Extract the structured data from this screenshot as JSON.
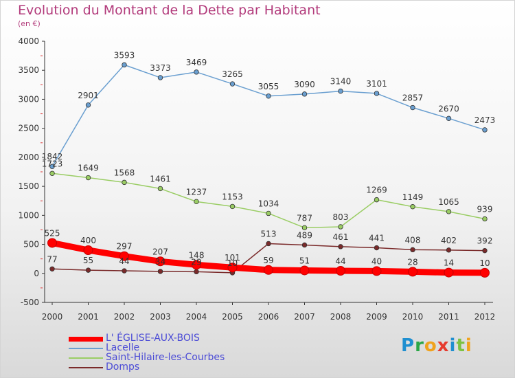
{
  "header": {
    "title": "Evolution du Montant de la Dette par Habitant",
    "subtitle": "(en €)"
  },
  "logo": {
    "letters": [
      "P",
      "r",
      "o",
      "x",
      "i",
      "t",
      "i"
    ],
    "colors": [
      "#1f8fd0",
      "#2aa646",
      "#f0a21c",
      "#e63b2e",
      "#1f8fd0",
      "#7cc242",
      "#f0a21c"
    ]
  },
  "chart_data": {
    "type": "line",
    "x": [
      "2000",
      "2001",
      "2002",
      "2003",
      "2004",
      "2005",
      "2006",
      "2007",
      "2008",
      "2009",
      "2010",
      "2011",
      "2012"
    ],
    "ylim": [
      -500,
      4000
    ],
    "yticks": [
      "-500",
      "0",
      "500",
      "1000",
      "1500",
      "2000",
      "2500",
      "3000",
      "3500",
      "4000"
    ],
    "grid": false,
    "legend_position": "bottom",
    "series": [
      {
        "name": "L' ÉGLISE-AUX-BOIS",
        "color": "#ff0000",
        "values": [
          525,
          400,
          297,
          207,
          148,
          101,
          59,
          51,
          44,
          40,
          28,
          14,
          10
        ],
        "labels": [
          "525",
          "400",
          "297",
          "207",
          "148",
          "101",
          "59",
          "51",
          "44",
          "40",
          "28",
          "14",
          "10"
        ]
      },
      {
        "name": "Lacelle",
        "color": "#6a9fd0",
        "values": [
          1842,
          2901,
          3593,
          3373,
          3469,
          3265,
          3055,
          3090,
          3140,
          3101,
          2857,
          2670,
          2473
        ],
        "labels": [
          "1842",
          "2901",
          "3593",
          "3373",
          "3469",
          "3265",
          "3055",
          "3090",
          "3140",
          "3101",
          "2857",
          "2670",
          "2473"
        ]
      },
      {
        "name": "Saint-Hilaire-les-Courbes",
        "color": "#9acd64",
        "values": [
          1723,
          1649,
          1568,
          1461,
          1237,
          1153,
          1034,
          787,
          803,
          1269,
          1149,
          1065,
          939
        ],
        "labels": [
          "1723",
          "1649",
          "1568",
          "1461",
          "1237",
          "1153",
          "1034",
          "787",
          "803",
          "1269",
          "1149",
          "1065",
          "939"
        ]
      },
      {
        "name": "Domps",
        "color": "#7a2a2a",
        "values": [
          77,
          55,
          44,
          34,
          29,
          10,
          513,
          489,
          461,
          441,
          408,
          402,
          392
        ],
        "labels": [
          "77",
          "55",
          "44",
          "34",
          "29",
          "10",
          "513",
          "489",
          "461",
          "441",
          "408",
          "402",
          "392"
        ]
      }
    ]
  }
}
